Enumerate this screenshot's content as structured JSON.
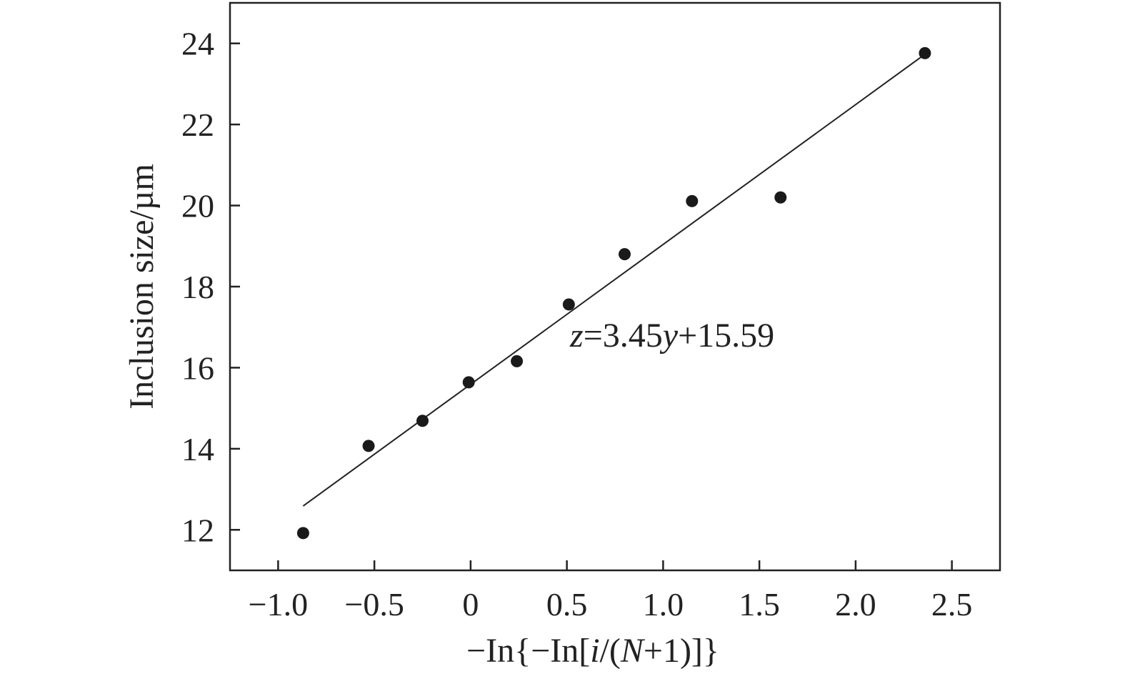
{
  "colors": {
    "axis": "#222222",
    "points": "#1a1a1a",
    "fit_line": "#222222",
    "background": "#ffffff"
  },
  "chart_data": {
    "type": "scatter",
    "xlabel": {
      "prefix": "−In{−In[",
      "i": "i",
      "mid": "/(",
      "N": "N",
      "suffix": "+1)]}"
    },
    "ylabel": "Inclusion size/µm",
    "xlim": [
      -1.25,
      2.75
    ],
    "ylim": [
      11,
      25
    ],
    "xticks": [
      -1.0,
      -0.5,
      0,
      0.5,
      1.0,
      1.5,
      2.0,
      2.5
    ],
    "xtick_labels": [
      "−1.0",
      "−0.5",
      "0",
      "0.5",
      "1.0",
      "1.5",
      "2.0",
      "2.5"
    ],
    "yticks": [
      12,
      14,
      16,
      18,
      20,
      22,
      24
    ],
    "ytick_labels": [
      "12",
      "14",
      "16",
      "18",
      "20",
      "22",
      "24"
    ],
    "grid": false,
    "series": [
      {
        "x": [
          -0.87,
          -0.53,
          -0.25,
          -0.01,
          0.24,
          0.51,
          0.8,
          1.15,
          1.61,
          2.36
        ],
        "y": [
          11.92,
          14.07,
          14.69,
          15.64,
          16.16,
          17.56,
          18.8,
          20.11,
          20.2,
          23.76
        ]
      }
    ],
    "fit": {
      "slope": 3.45,
      "intercept": 15.59,
      "x_range": [
        -0.87,
        2.36
      ],
      "equation": {
        "z": "z",
        "eq_mid": "=3.45",
        "y": "y",
        "eq_end": "+15.59"
      }
    }
  }
}
